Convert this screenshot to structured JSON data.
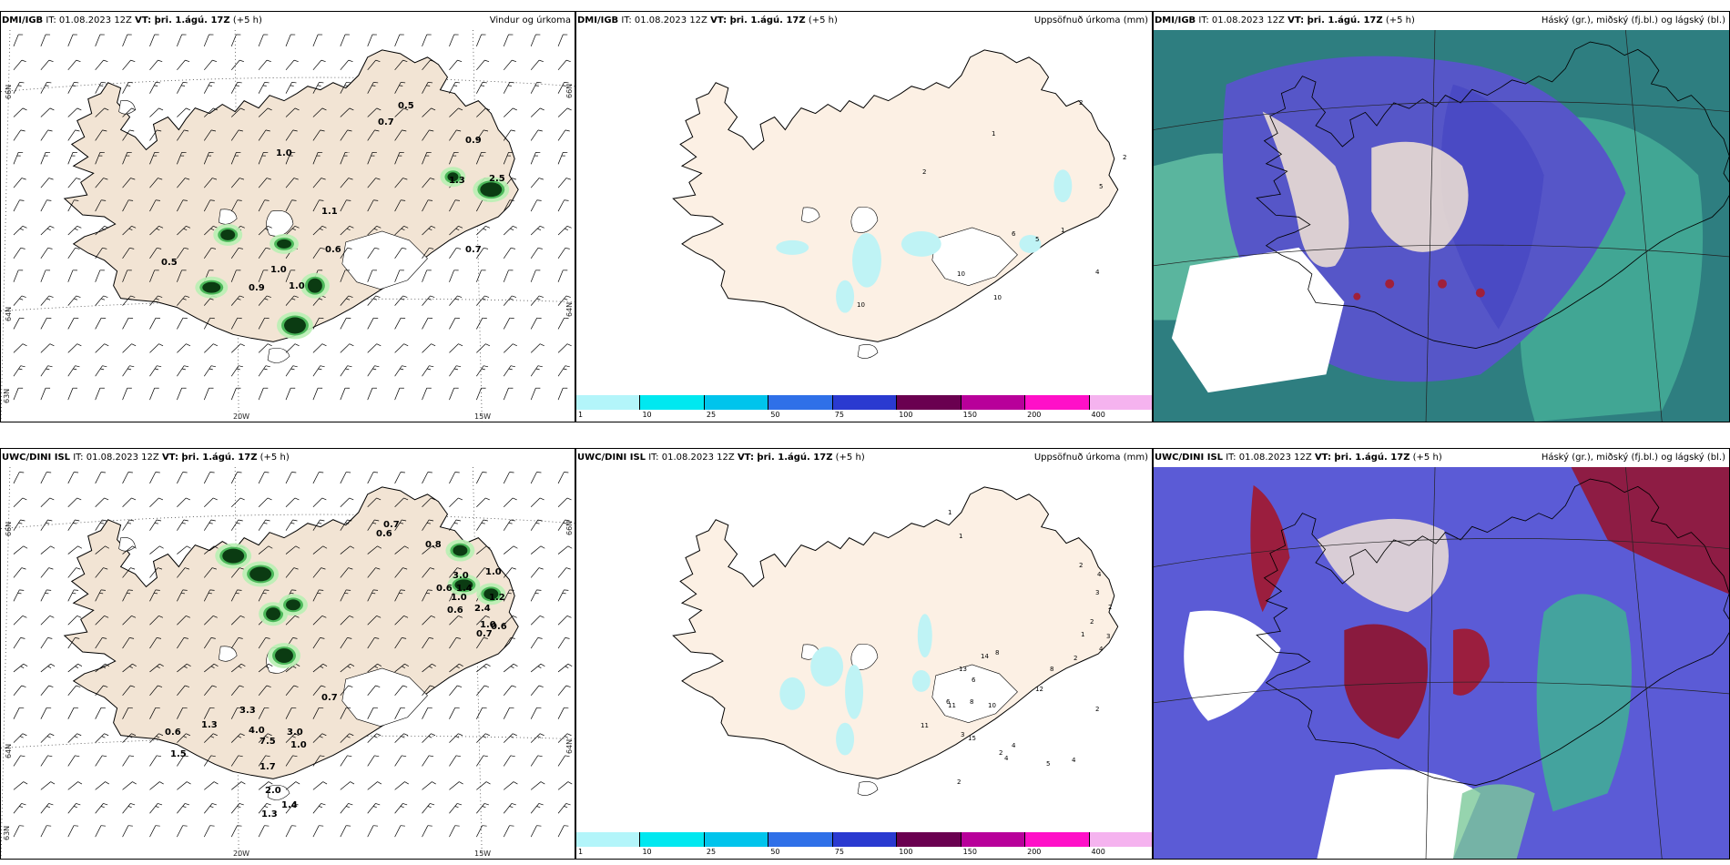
{
  "panels": [
    {
      "source": "DMI/IGB",
      "it": "IT: 01.08.2023 12Z",
      "vt": "VT: þri. 1.ágú. 17Z",
      "offset": "(+5 h)",
      "title": "Vindur og úrkoma"
    },
    {
      "source": "DMI/IGB",
      "it": "IT: 01.08.2023 12Z",
      "vt": "VT: þri. 1.ágú. 17Z",
      "offset": "(+5 h)",
      "title": "Uppsöfnuð úrkoma (mm)"
    },
    {
      "source": "DMI/IGB",
      "it": "IT: 01.08.2023 12Z",
      "vt": "VT: þri. 1.ágú. 17Z",
      "offset": "(+5 h)",
      "title": "Háský (gr.), miðský (fj.bl.) og lágský (bl.)"
    },
    {
      "source": "UWC/DINI ISL",
      "it": "IT: 01.08.2023 12Z",
      "vt": "VT: þri. 1.ágú. 17Z",
      "offset": "(+5 h)",
      "title": ""
    },
    {
      "source": "UWC/DINI ISL",
      "it": "IT: 01.08.2023 12Z",
      "vt": "VT: þri. 1.ágú. 17Z",
      "offset": "(+5 h)",
      "title": "Uppsöfnuð úrkoma (mm)"
    },
    {
      "source": "UWC/DINI ISL",
      "it": "IT: 01.08.2023 12Z",
      "vt": "VT: þri. 1.ágú. 17Z",
      "offset": "(+5 h)",
      "title": "Háský (gr.), miðský (fj.bl.) og lágský (bl.)"
    }
  ],
  "grid": {
    "lat66": "66N",
    "lat64": "64N",
    "lat63": "63N",
    "lon20": "20W",
    "lon15": "15W"
  },
  "colorbar": {
    "ticks": [
      "1",
      "10",
      "25",
      "50",
      "75",
      "100",
      "150",
      "200",
      "400"
    ],
    "colors": [
      "#b3f5fa",
      "#00e8f0",
      "#00c4ec",
      "#2f70e8",
      "#2a3ad0",
      "#6a0050",
      "#b8009a",
      "#ff10c8",
      "#f5b3ef"
    ]
  },
  "wind_values_top": [
    "0.5",
    "0.7",
    "0.9",
    "1.0",
    "1.3",
    "2.5",
    "1.1",
    "0.6",
    "0.7",
    "0.5",
    "1.0",
    "0.9",
    "1.0"
  ],
  "wind_values_bottom": [
    "0.7",
    "0.6",
    "0.8",
    "3.0",
    "1.0",
    "0.6",
    "1.4",
    "1.0",
    "1.2",
    "0.6",
    "2.4",
    "1.0",
    "0.6",
    "0.7",
    "0.7",
    "1.3",
    "3.3",
    "4.0",
    "7.5",
    "0.6",
    "3.0",
    "1.0",
    "1.5",
    "1.7",
    "2.0",
    "1.3",
    "1.4"
  ],
  "precip_top": [
    "2",
    "1",
    "2",
    "2",
    "5",
    "1",
    "5",
    "6",
    "10",
    "10",
    "4",
    "10"
  ],
  "precip_bottom": [
    "1",
    "1",
    "2",
    "4",
    "3",
    "2",
    "2",
    "1",
    "3",
    "4",
    "2",
    "8",
    "13",
    "14",
    "8",
    "6",
    "8",
    "6",
    "12",
    "11",
    "10",
    "15",
    "11",
    "3",
    "4",
    "4",
    "4",
    "2",
    "2",
    "5",
    "2"
  ]
}
